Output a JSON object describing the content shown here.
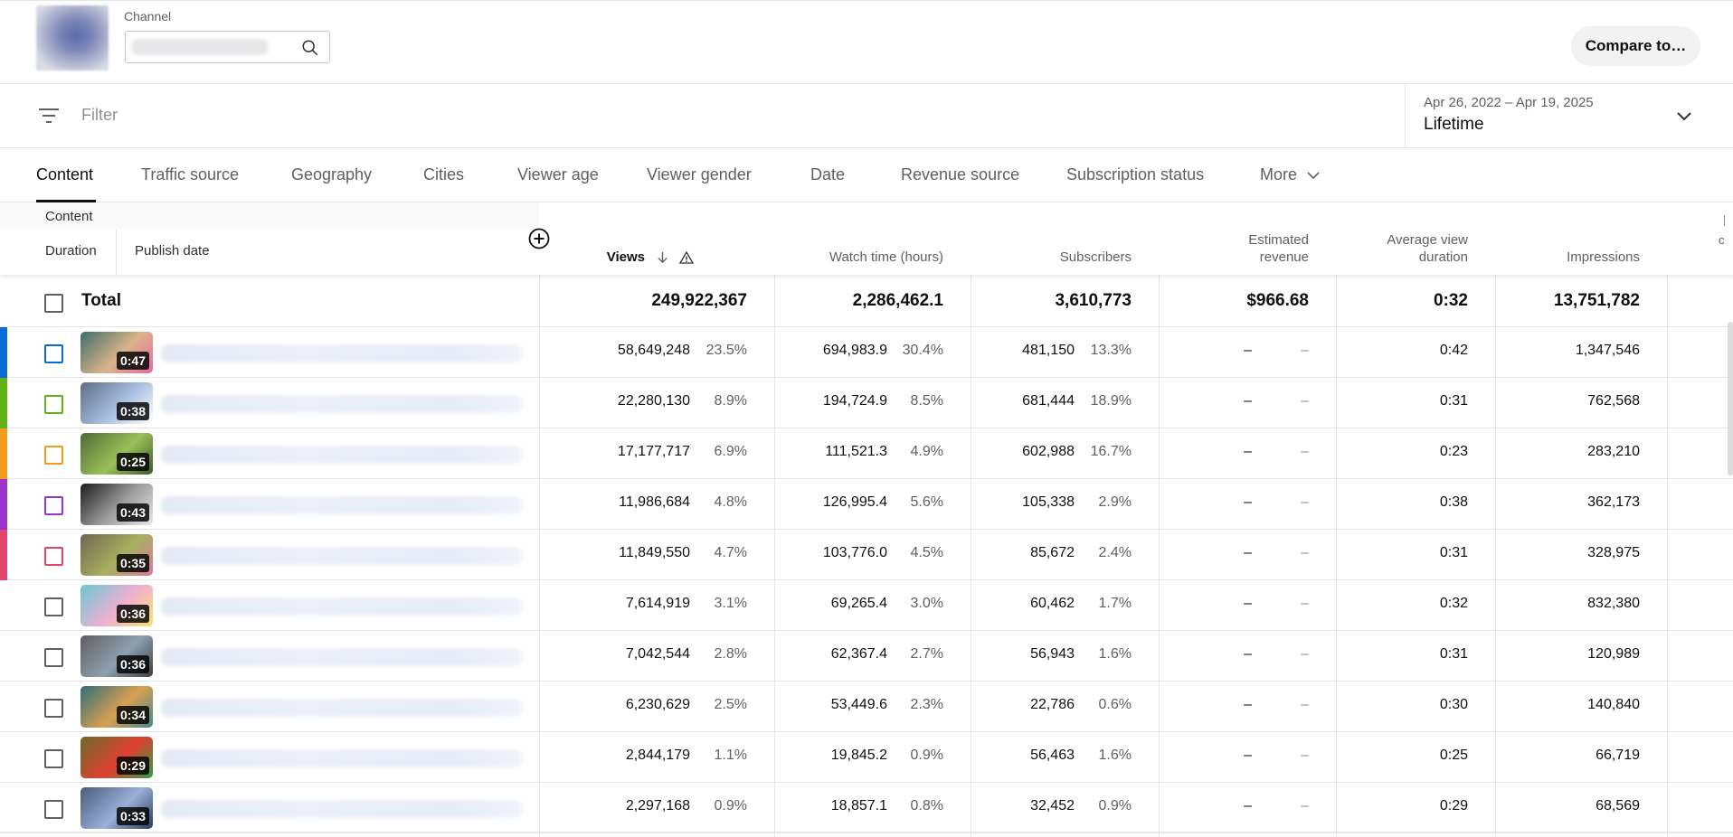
{
  "header": {
    "channel_label": "Channel",
    "compare_label": "Compare to…"
  },
  "filterbar": {
    "placeholder": "Filter",
    "date_range": "Apr 26, 2022 – Apr 19, 2025",
    "period": "Lifetime"
  },
  "tabs": [
    {
      "label": "Content"
    },
    {
      "label": "Traffic source"
    },
    {
      "label": "Geography"
    },
    {
      "label": "Cities"
    },
    {
      "label": "Viewer age"
    },
    {
      "label": "Viewer gender"
    },
    {
      "label": "Date"
    },
    {
      "label": "Revenue source"
    },
    {
      "label": "Subscription status"
    },
    {
      "label": "More"
    }
  ],
  "table": {
    "content_label": "Content",
    "sub_duration": "Duration",
    "sub_publish": "Publish date",
    "columns": {
      "views": "Views",
      "watch_time": "Watch time (hours)",
      "subscribers": "Subscribers",
      "revenue_1": "Estimated",
      "revenue_2": "revenue",
      "avd_1": "Average view",
      "avd_2": "duration",
      "impressions": "Impressions",
      "cut_off": "c"
    },
    "total": {
      "label": "Total",
      "views": "249,922,367",
      "watch_time": "2,286,462.1",
      "subscribers": "3,610,773",
      "revenue": "$966.68",
      "avd": "0:32",
      "impressions": "13,751,782"
    },
    "rows": [
      {
        "duration": "0:47",
        "color": "#0b6ad4",
        "checkbox_color": "#0b6ad4",
        "views": "58,649,248",
        "views_pct": "23.5%",
        "watch": "694,983.9",
        "watch_pct": "30.4%",
        "subs": "481,150",
        "subs_pct": "13.3%",
        "rev": "–",
        "rev_pct": "–",
        "avd": "0:42",
        "impr": "1,347,546"
      },
      {
        "duration": "0:38",
        "color": "#5fb115",
        "checkbox_color": "#5fb115",
        "views": "22,280,130",
        "views_pct": "8.9%",
        "watch": "194,724.9",
        "watch_pct": "8.5%",
        "subs": "681,444",
        "subs_pct": "18.9%",
        "rev": "–",
        "rev_pct": "–",
        "avd": "0:31",
        "impr": "762,568"
      },
      {
        "duration": "0:25",
        "color": "#f29b1c",
        "checkbox_color": "#f29b1c",
        "views": "17,177,717",
        "views_pct": "6.9%",
        "watch": "111,521.3",
        "watch_pct": "4.9%",
        "subs": "602,988",
        "subs_pct": "16.7%",
        "rev": "–",
        "rev_pct": "–",
        "avd": "0:23",
        "impr": "283,210"
      },
      {
        "duration": "0:43",
        "color": "#9a32cd",
        "checkbox_color": "#9a32cd",
        "views": "11,986,684",
        "views_pct": "4.8%",
        "watch": "126,995.4",
        "watch_pct": "5.6%",
        "subs": "105,338",
        "subs_pct": "2.9%",
        "rev": "–",
        "rev_pct": "–",
        "avd": "0:38",
        "impr": "362,173"
      },
      {
        "duration": "0:35",
        "color": "#e2456b",
        "checkbox_color": "#e2456b",
        "views": "11,849,550",
        "views_pct": "4.7%",
        "watch": "103,776.0",
        "watch_pct": "4.5%",
        "subs": "85,672",
        "subs_pct": "2.4%",
        "rev": "–",
        "rev_pct": "–",
        "avd": "0:31",
        "impr": "328,975"
      },
      {
        "duration": "0:36",
        "color": "",
        "checkbox_color": "#606060",
        "views": "7,614,919",
        "views_pct": "3.1%",
        "watch": "69,265.4",
        "watch_pct": "3.0%",
        "subs": "60,462",
        "subs_pct": "1.7%",
        "rev": "–",
        "rev_pct": "–",
        "avd": "0:32",
        "impr": "832,380"
      },
      {
        "duration": "0:36",
        "color": "",
        "checkbox_color": "#606060",
        "views": "7,042,544",
        "views_pct": "2.8%",
        "watch": "62,367.4",
        "watch_pct": "2.7%",
        "subs": "56,943",
        "subs_pct": "1.6%",
        "rev": "–",
        "rev_pct": "–",
        "avd": "0:31",
        "impr": "120,989"
      },
      {
        "duration": "0:34",
        "color": "",
        "checkbox_color": "#606060",
        "views": "6,230,629",
        "views_pct": "2.5%",
        "watch": "53,449.6",
        "watch_pct": "2.3%",
        "subs": "22,786",
        "subs_pct": "0.6%",
        "rev": "–",
        "rev_pct": "–",
        "avd": "0:30",
        "impr": "140,840"
      },
      {
        "duration": "0:29",
        "color": "",
        "checkbox_color": "#606060",
        "views": "2,844,179",
        "views_pct": "1.1%",
        "watch": "19,845.2",
        "watch_pct": "0.9%",
        "subs": "56,463",
        "subs_pct": "1.6%",
        "rev": "–",
        "rev_pct": "–",
        "avd": "0:25",
        "impr": "66,719"
      },
      {
        "duration": "0:33",
        "color": "",
        "checkbox_color": "#606060",
        "views": "2,297,168",
        "views_pct": "0.9%",
        "watch": "18,857.1",
        "watch_pct": "0.8%",
        "subs": "32,452",
        "subs_pct": "0.9%",
        "rev": "–",
        "rev_pct": "–",
        "avd": "0:29",
        "impr": "68,569"
      }
    ]
  }
}
